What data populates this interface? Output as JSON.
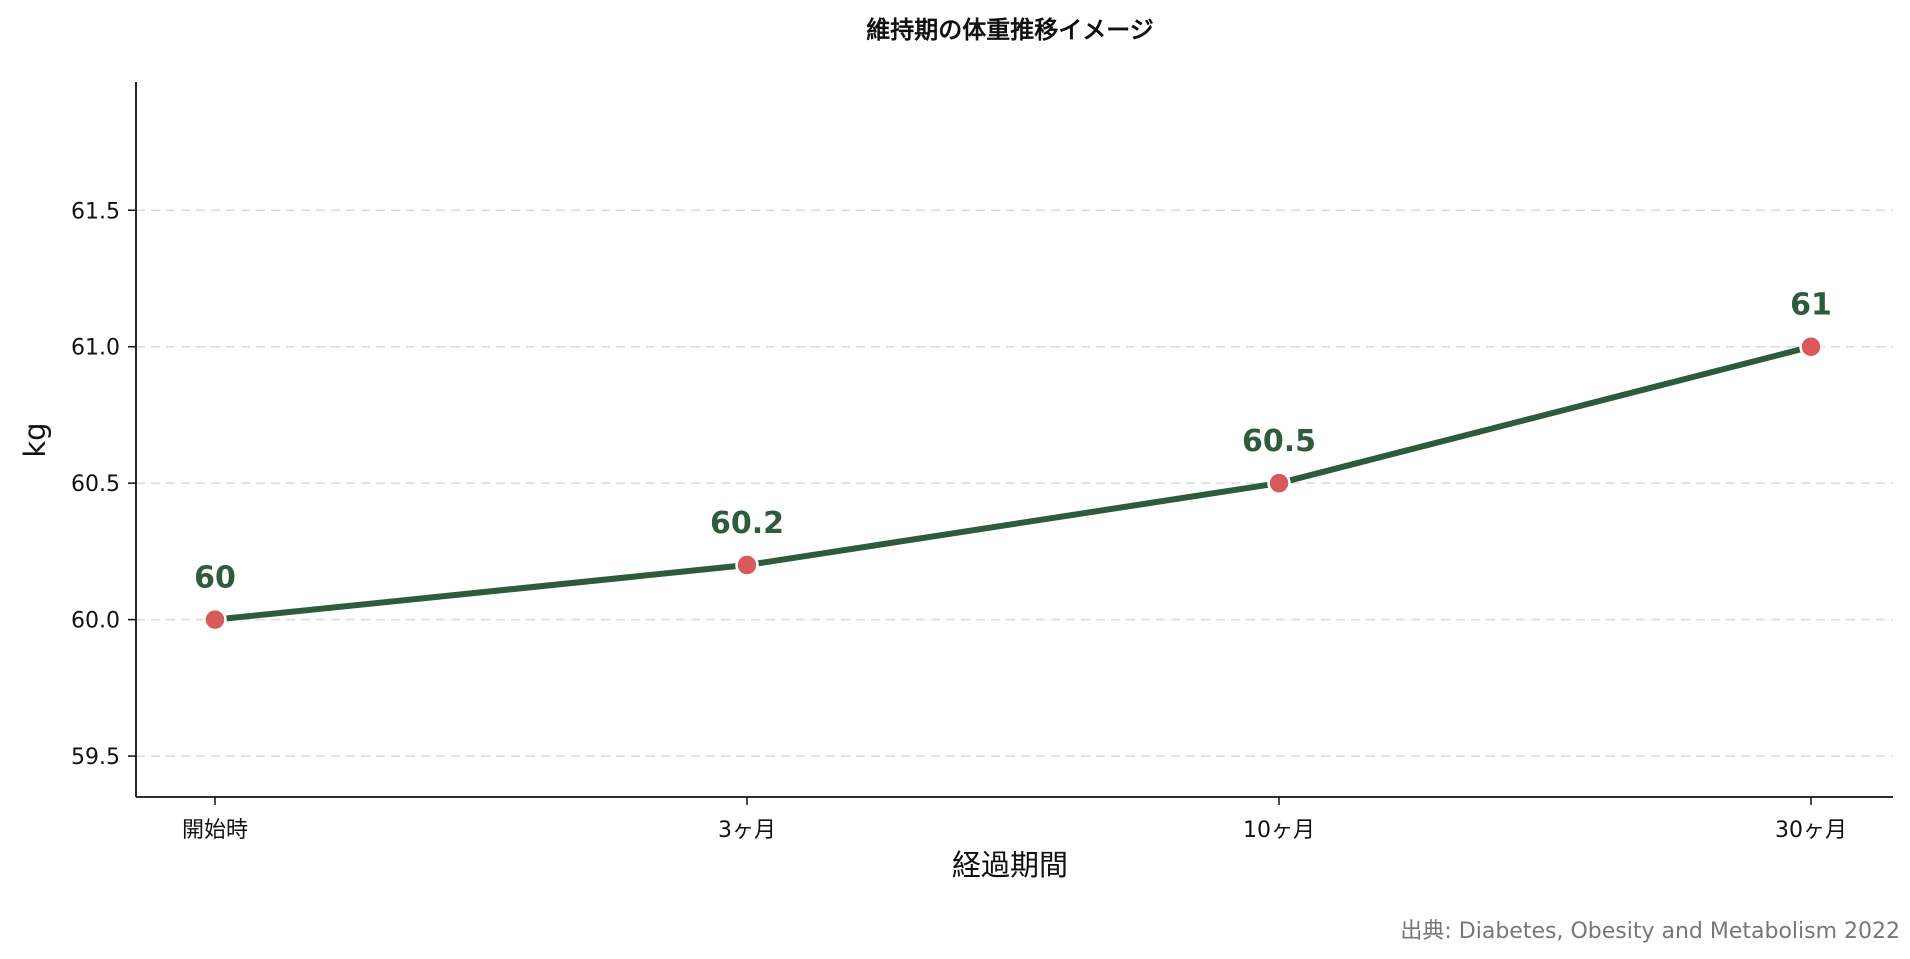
{
  "chart_data": {
    "type": "line",
    "title": "維持期の体重推移イメージ",
    "xlabel": "経過期間",
    "ylabel": "kg",
    "categories": [
      "開始時",
      "3ヶ月",
      "10ヶ月",
      "30ヶ月"
    ],
    "series": [
      {
        "values": [
          60,
          60.2,
          60.5,
          61
        ],
        "labels": [
          "60",
          "60.2",
          "60.5",
          "61"
        ]
      }
    ],
    "ylim": [
      59.35,
      61.97
    ],
    "yticks": [
      59.5,
      60.0,
      60.5,
      61.0,
      61.5
    ],
    "ytick_labels": [
      "59.5",
      "60.0",
      "60.5",
      "61.0",
      "61.5"
    ],
    "grid": "horizontal-dashed",
    "legend": "none",
    "source": "出典: Diabetes, Obesity and Metabolism 2022",
    "colors": {
      "line": "#2e5b3b",
      "marker": "#d95a5a",
      "data_label": "#2e5b3b",
      "grid": "#d7dcd9",
      "axis": "#111111",
      "source": "#777777"
    }
  }
}
